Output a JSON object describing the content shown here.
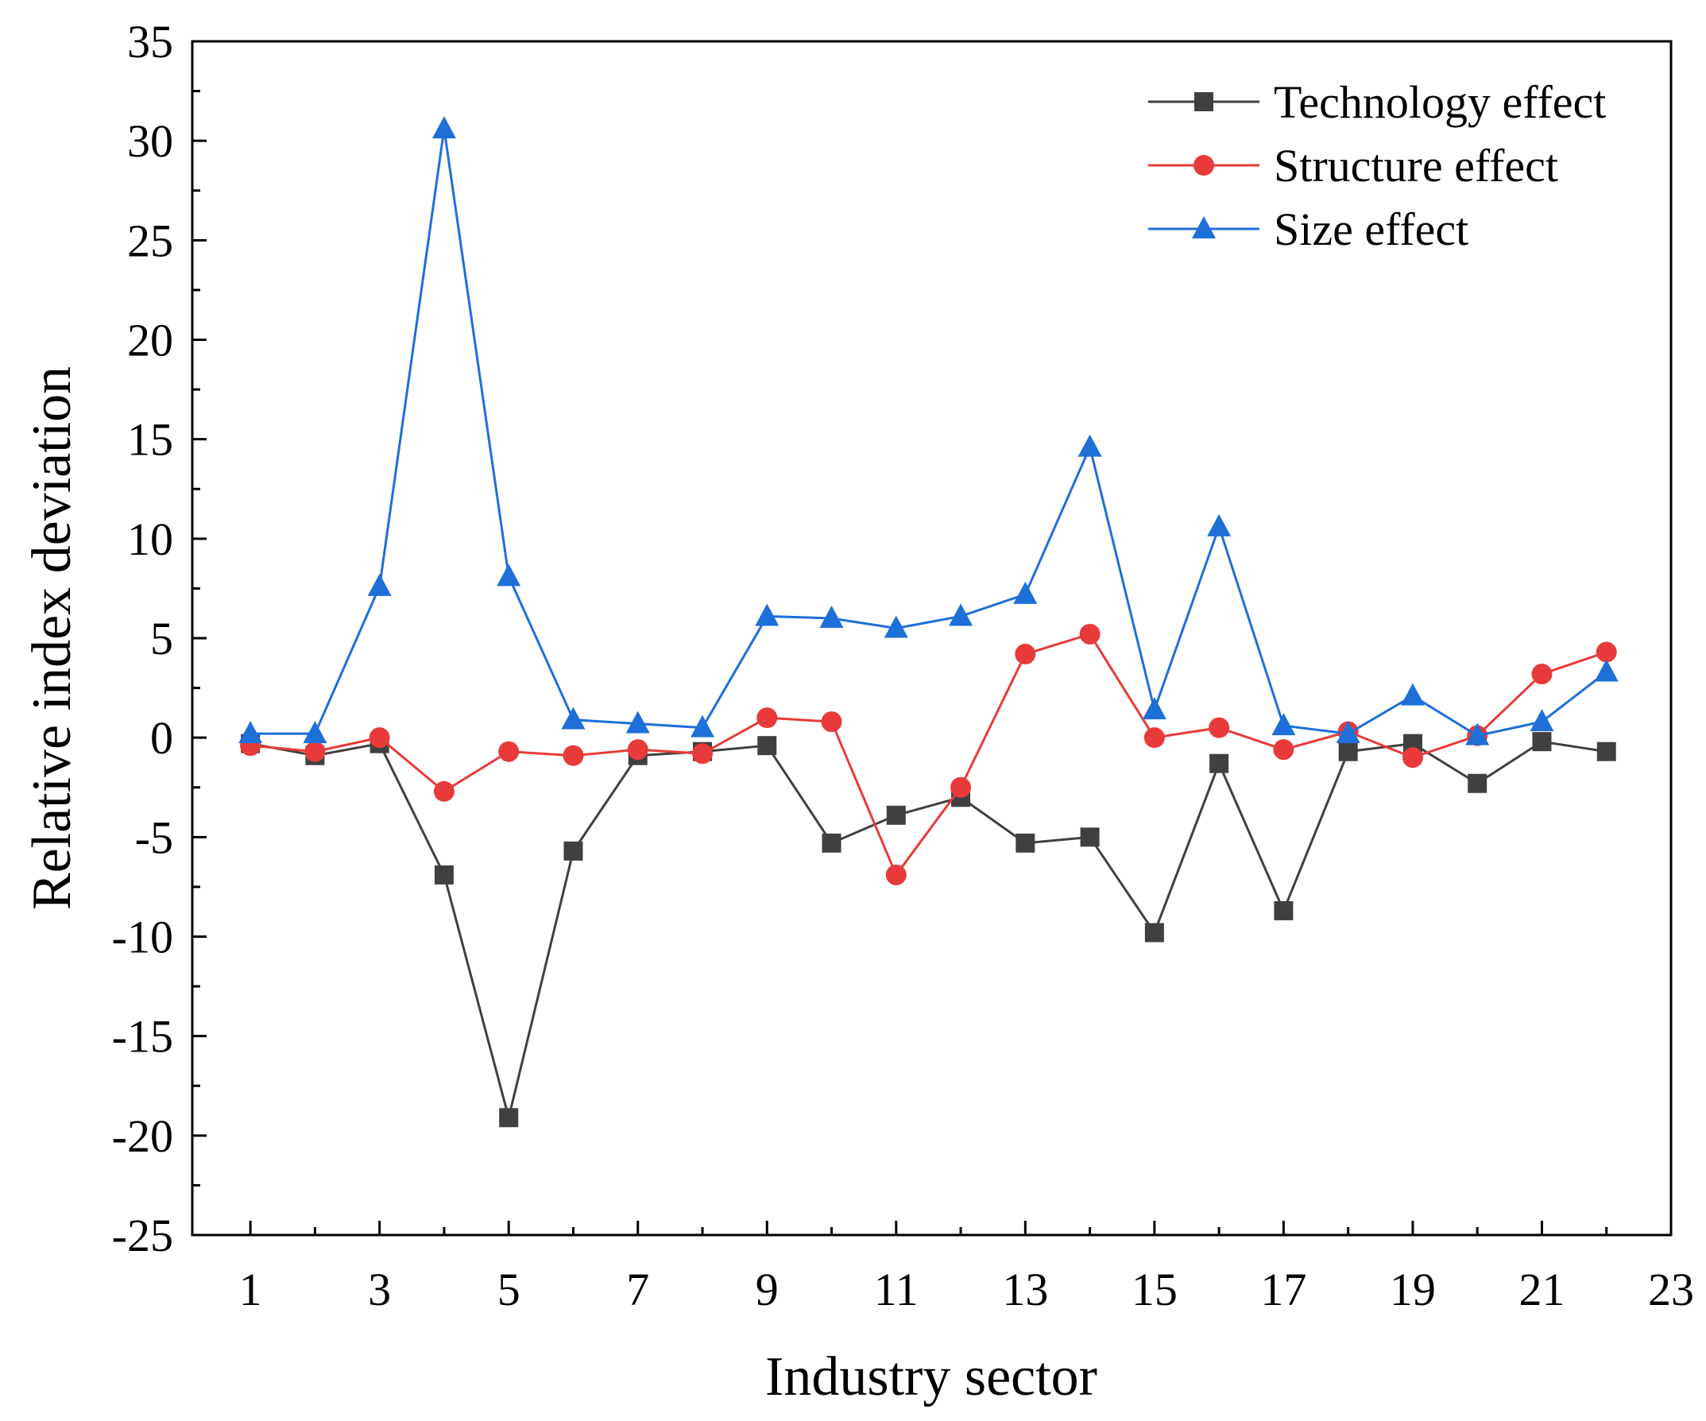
{
  "chart_data": {
    "type": "line",
    "xlabel": "Industry sector",
    "ylabel": "Relative index deviation",
    "xlim": [
      0.1,
      23
    ],
    "ylim": [
      -25,
      35
    ],
    "xticks": [
      1,
      3,
      5,
      7,
      9,
      11,
      13,
      15,
      17,
      19,
      21,
      23
    ],
    "yticks": [
      35,
      30,
      25,
      20,
      15,
      10,
      5,
      0,
      -5,
      -10,
      -15,
      -20,
      -25
    ],
    "legend_position": "top-right",
    "x": [
      1,
      2,
      3,
      4,
      5,
      6,
      7,
      8,
      9,
      10,
      11,
      12,
      13,
      14,
      15,
      16,
      17,
      18,
      19,
      20,
      21,
      22
    ],
    "series": [
      {
        "name": "Technology effect",
        "marker": "square",
        "color": "#404040",
        "values": [
          -0.3,
          -0.9,
          -0.3,
          -6.9,
          -19.1,
          -5.7,
          -0.9,
          -0.7,
          -0.4,
          -5.3,
          -3.9,
          -3.0,
          -5.3,
          -5.0,
          -9.8,
          -1.3,
          -8.7,
          -0.7,
          -0.3,
          -2.3,
          -0.2,
          -0.7
        ]
      },
      {
        "name": "Structure effect",
        "marker": "circle",
        "color": "#e83a3a",
        "values": [
          -0.4,
          -0.7,
          0.0,
          -2.7,
          -0.7,
          -0.9,
          -0.6,
          -0.8,
          1.0,
          0.8,
          -6.9,
          -2.5,
          4.2,
          5.2,
          0.0,
          0.5,
          -0.6,
          0.3,
          -1.0,
          0.1,
          3.2,
          4.3
        ]
      },
      {
        "name": "Size effect",
        "marker": "triangle",
        "color": "#1f6fd8",
        "values": [
          0.2,
          0.2,
          7.6,
          30.6,
          8.1,
          0.9,
          0.7,
          0.5,
          6.1,
          6.0,
          5.5,
          6.1,
          7.2,
          14.6,
          1.4,
          10.6,
          0.6,
          0.2,
          2.1,
          0.1,
          0.8,
          3.3
        ]
      }
    ]
  }
}
